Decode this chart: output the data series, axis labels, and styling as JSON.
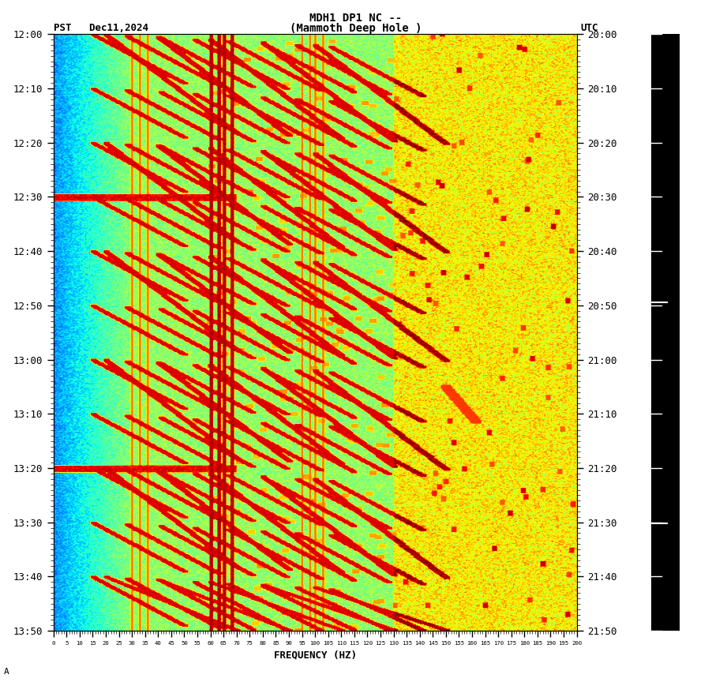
{
  "title_line1": "MDH1 DP1 NC --",
  "title_line2": "(Mammoth Deep Hole )",
  "left_label": "PST   Dec11,2024",
  "right_label": "UTC",
  "xlabel": "FREQUENCY (HZ)",
  "freq_ticks": [
    0,
    5,
    10,
    15,
    20,
    25,
    30,
    35,
    40,
    45,
    50,
    55,
    60,
    65,
    70,
    75,
    80,
    85,
    90,
    95,
    100,
    105,
    110,
    115,
    120,
    125,
    130,
    135,
    140,
    145,
    150,
    155,
    160,
    165,
    170,
    175,
    180,
    185,
    190,
    195,
    200
  ],
  "time_labels_pst": [
    "12:00",
    "12:10",
    "12:20",
    "12:30",
    "12:40",
    "12:50",
    "13:00",
    "13:10",
    "13:20",
    "13:30",
    "13:40",
    "13:50"
  ],
  "time_labels_utc": [
    "20:00",
    "20:10",
    "20:20",
    "20:30",
    "20:40",
    "20:50",
    "21:00",
    "21:10",
    "21:20",
    "21:30",
    "21:40",
    "21:50"
  ],
  "colormap": "jet",
  "n_time": 660,
  "n_freq": 400,
  "vmin": 0.0,
  "vmax": 1.0
}
